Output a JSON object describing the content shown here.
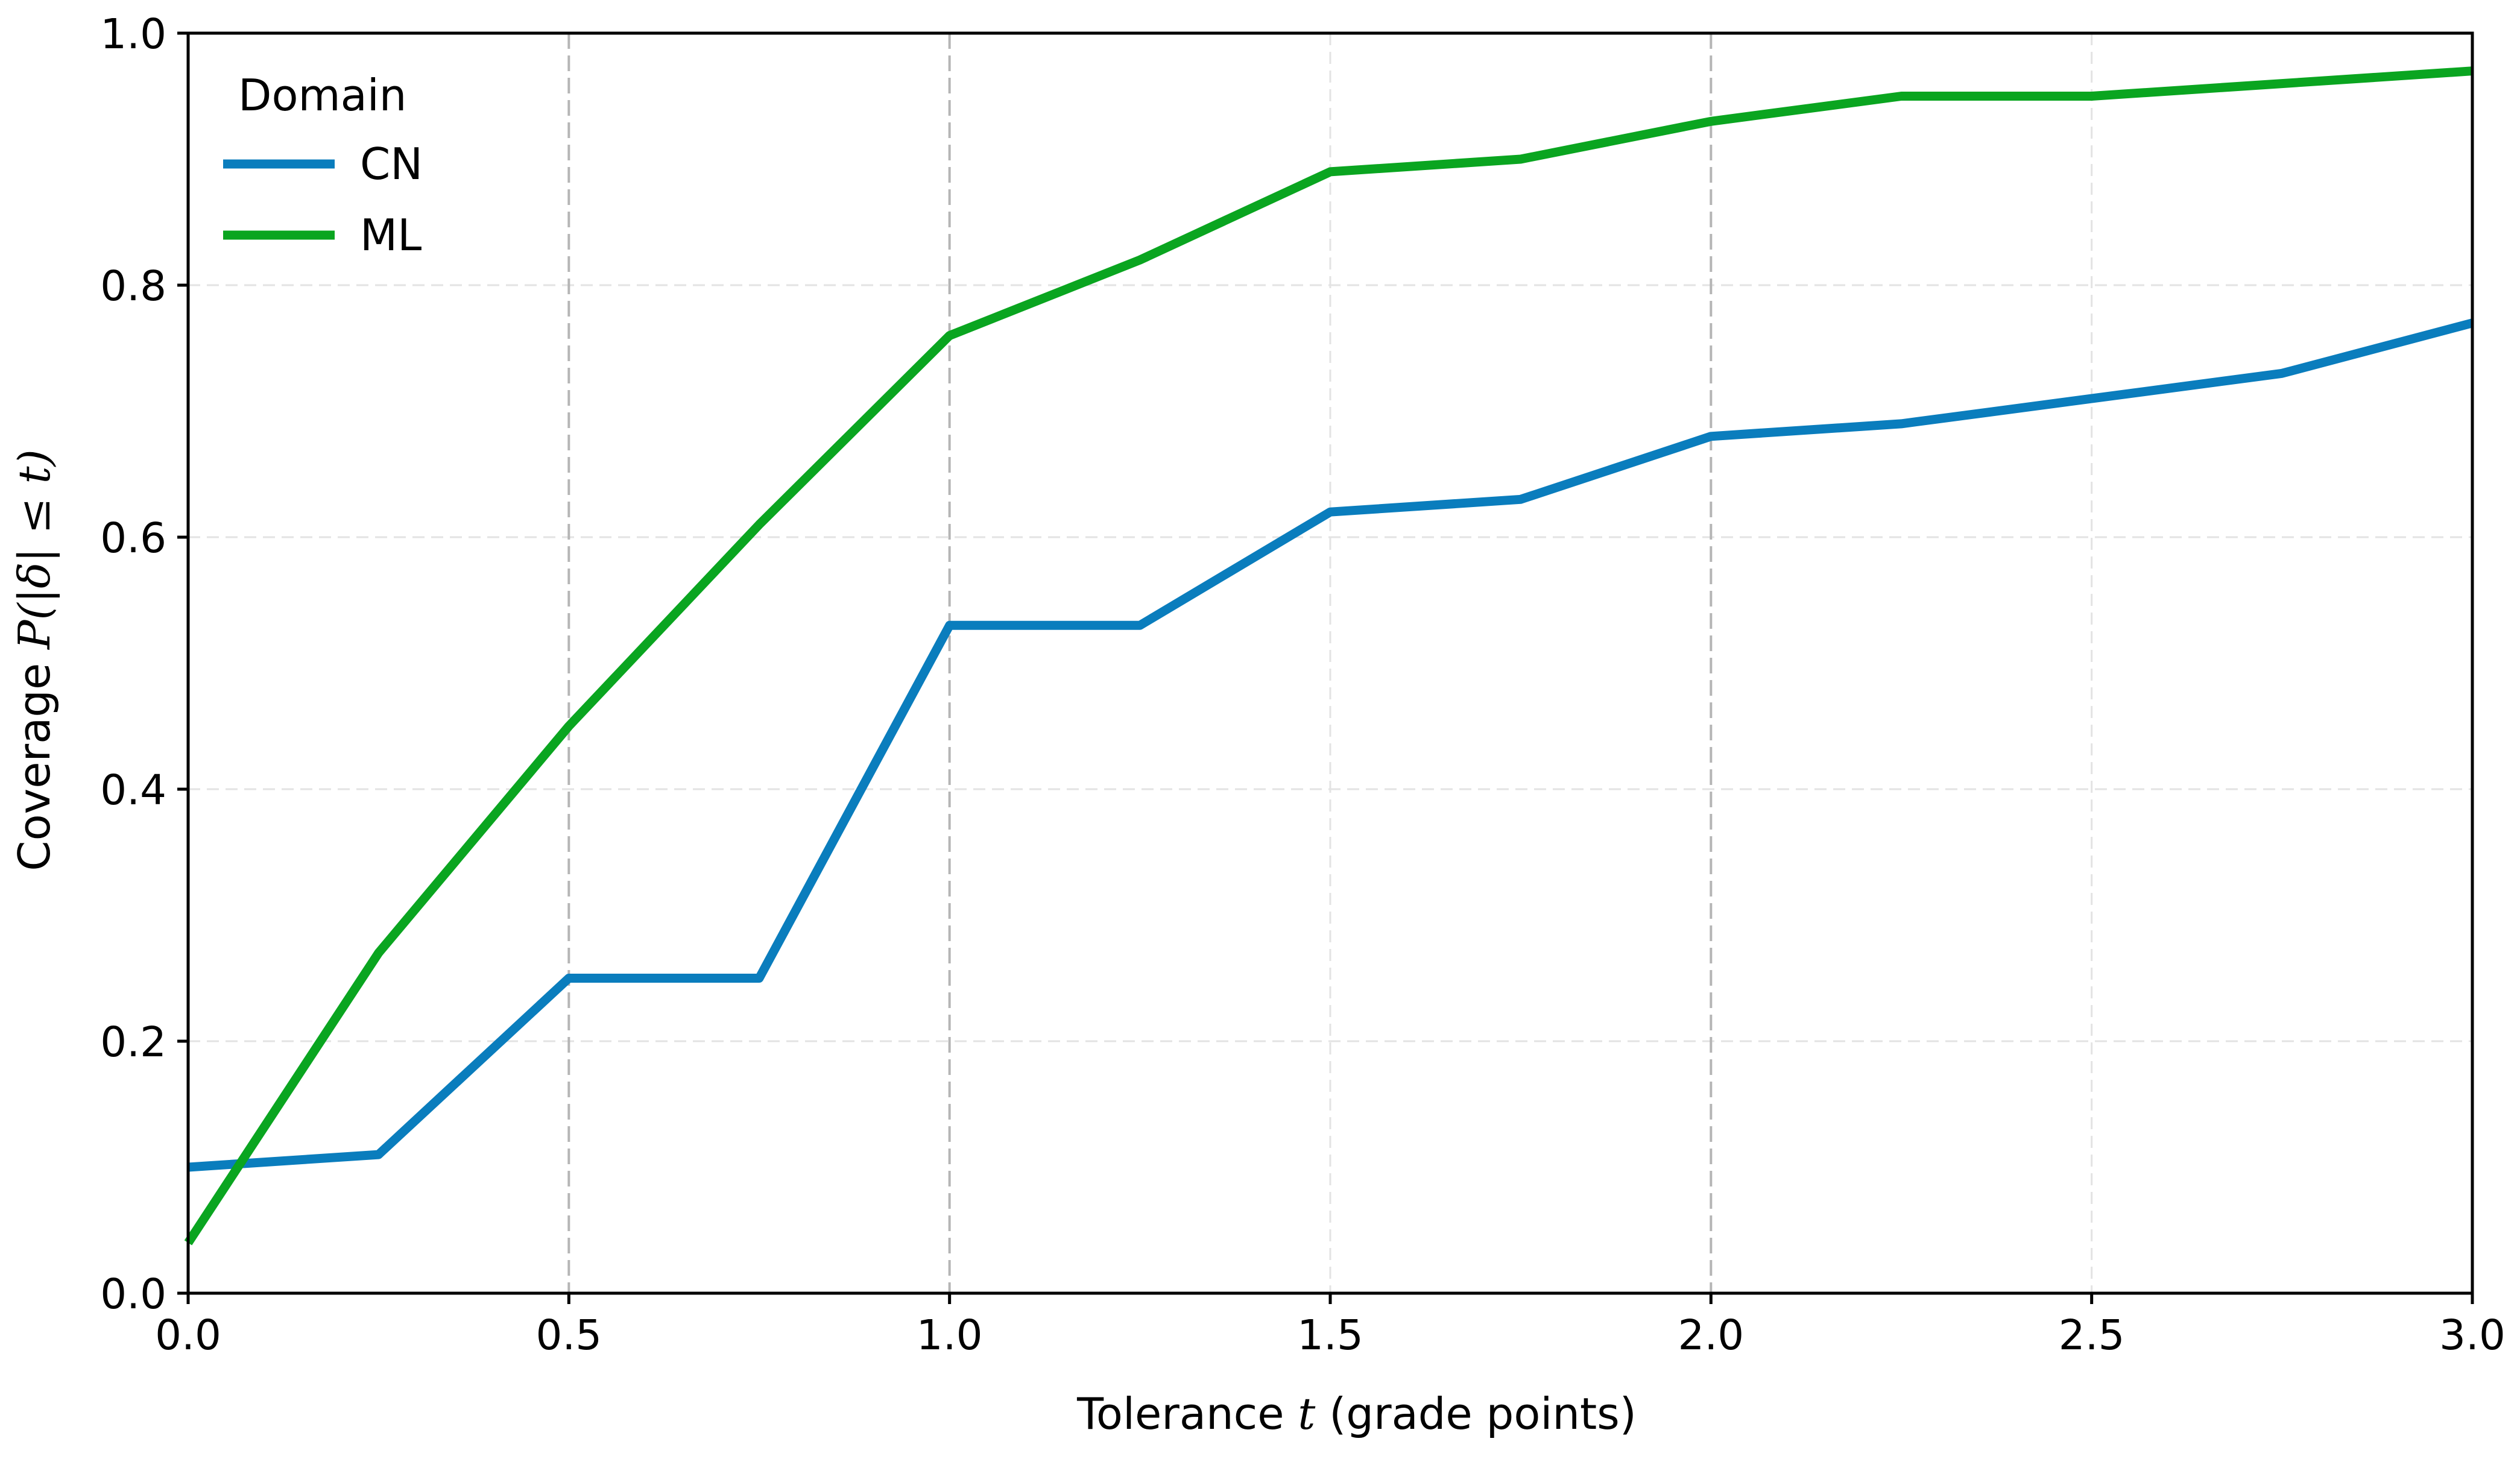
{
  "chart_data": {
    "type": "line",
    "title": "",
    "xlabel": {
      "prefix": "Tolerance ",
      "var": "t",
      "suffix": " (grade points)"
    },
    "ylabel": {
      "prefix": "Coverage ",
      "math": "P(|δ| ≤ t)"
    },
    "xlim": [
      0.0,
      3.0
    ],
    "ylim": [
      0.0,
      1.0
    ],
    "x_ticks": [
      0.0,
      0.5,
      1.0,
      1.5,
      2.0,
      2.5,
      3.0
    ],
    "x_tick_labels": [
      "0.0",
      "0.5",
      "1.0",
      "1.5",
      "2.0",
      "2.5",
      "3.0"
    ],
    "y_ticks": [
      0.0,
      0.2,
      0.4,
      0.6,
      0.8,
      1.0
    ],
    "y_tick_labels": [
      "0.0",
      "0.2",
      "0.4",
      "0.6",
      "0.8",
      "1.0"
    ],
    "grid": {
      "horizontal": "dashed light",
      "vertical_major": [
        0.5,
        1.0,
        2.0
      ],
      "vertical_minor": [
        1.5,
        2.5
      ]
    },
    "legend": {
      "title": "Domain",
      "placement": "top-left"
    },
    "x": [
      0.0,
      0.25,
      0.5,
      0.75,
      1.0,
      1.25,
      1.5,
      1.75,
      2.0,
      2.25,
      2.5,
      2.75,
      3.0
    ],
    "series": [
      {
        "name": "CN",
        "color": "#0a7dbd",
        "values": [
          0.1,
          0.11,
          0.25,
          0.25,
          0.53,
          0.53,
          0.62,
          0.63,
          0.68,
          0.69,
          0.71,
          0.73,
          0.77
        ]
      },
      {
        "name": "ML",
        "color": "#0aa520",
        "values": [
          0.04,
          0.27,
          0.45,
          0.61,
          0.76,
          0.82,
          0.89,
          0.9,
          0.93,
          0.95,
          0.95,
          0.96,
          0.97
        ]
      }
    ]
  }
}
